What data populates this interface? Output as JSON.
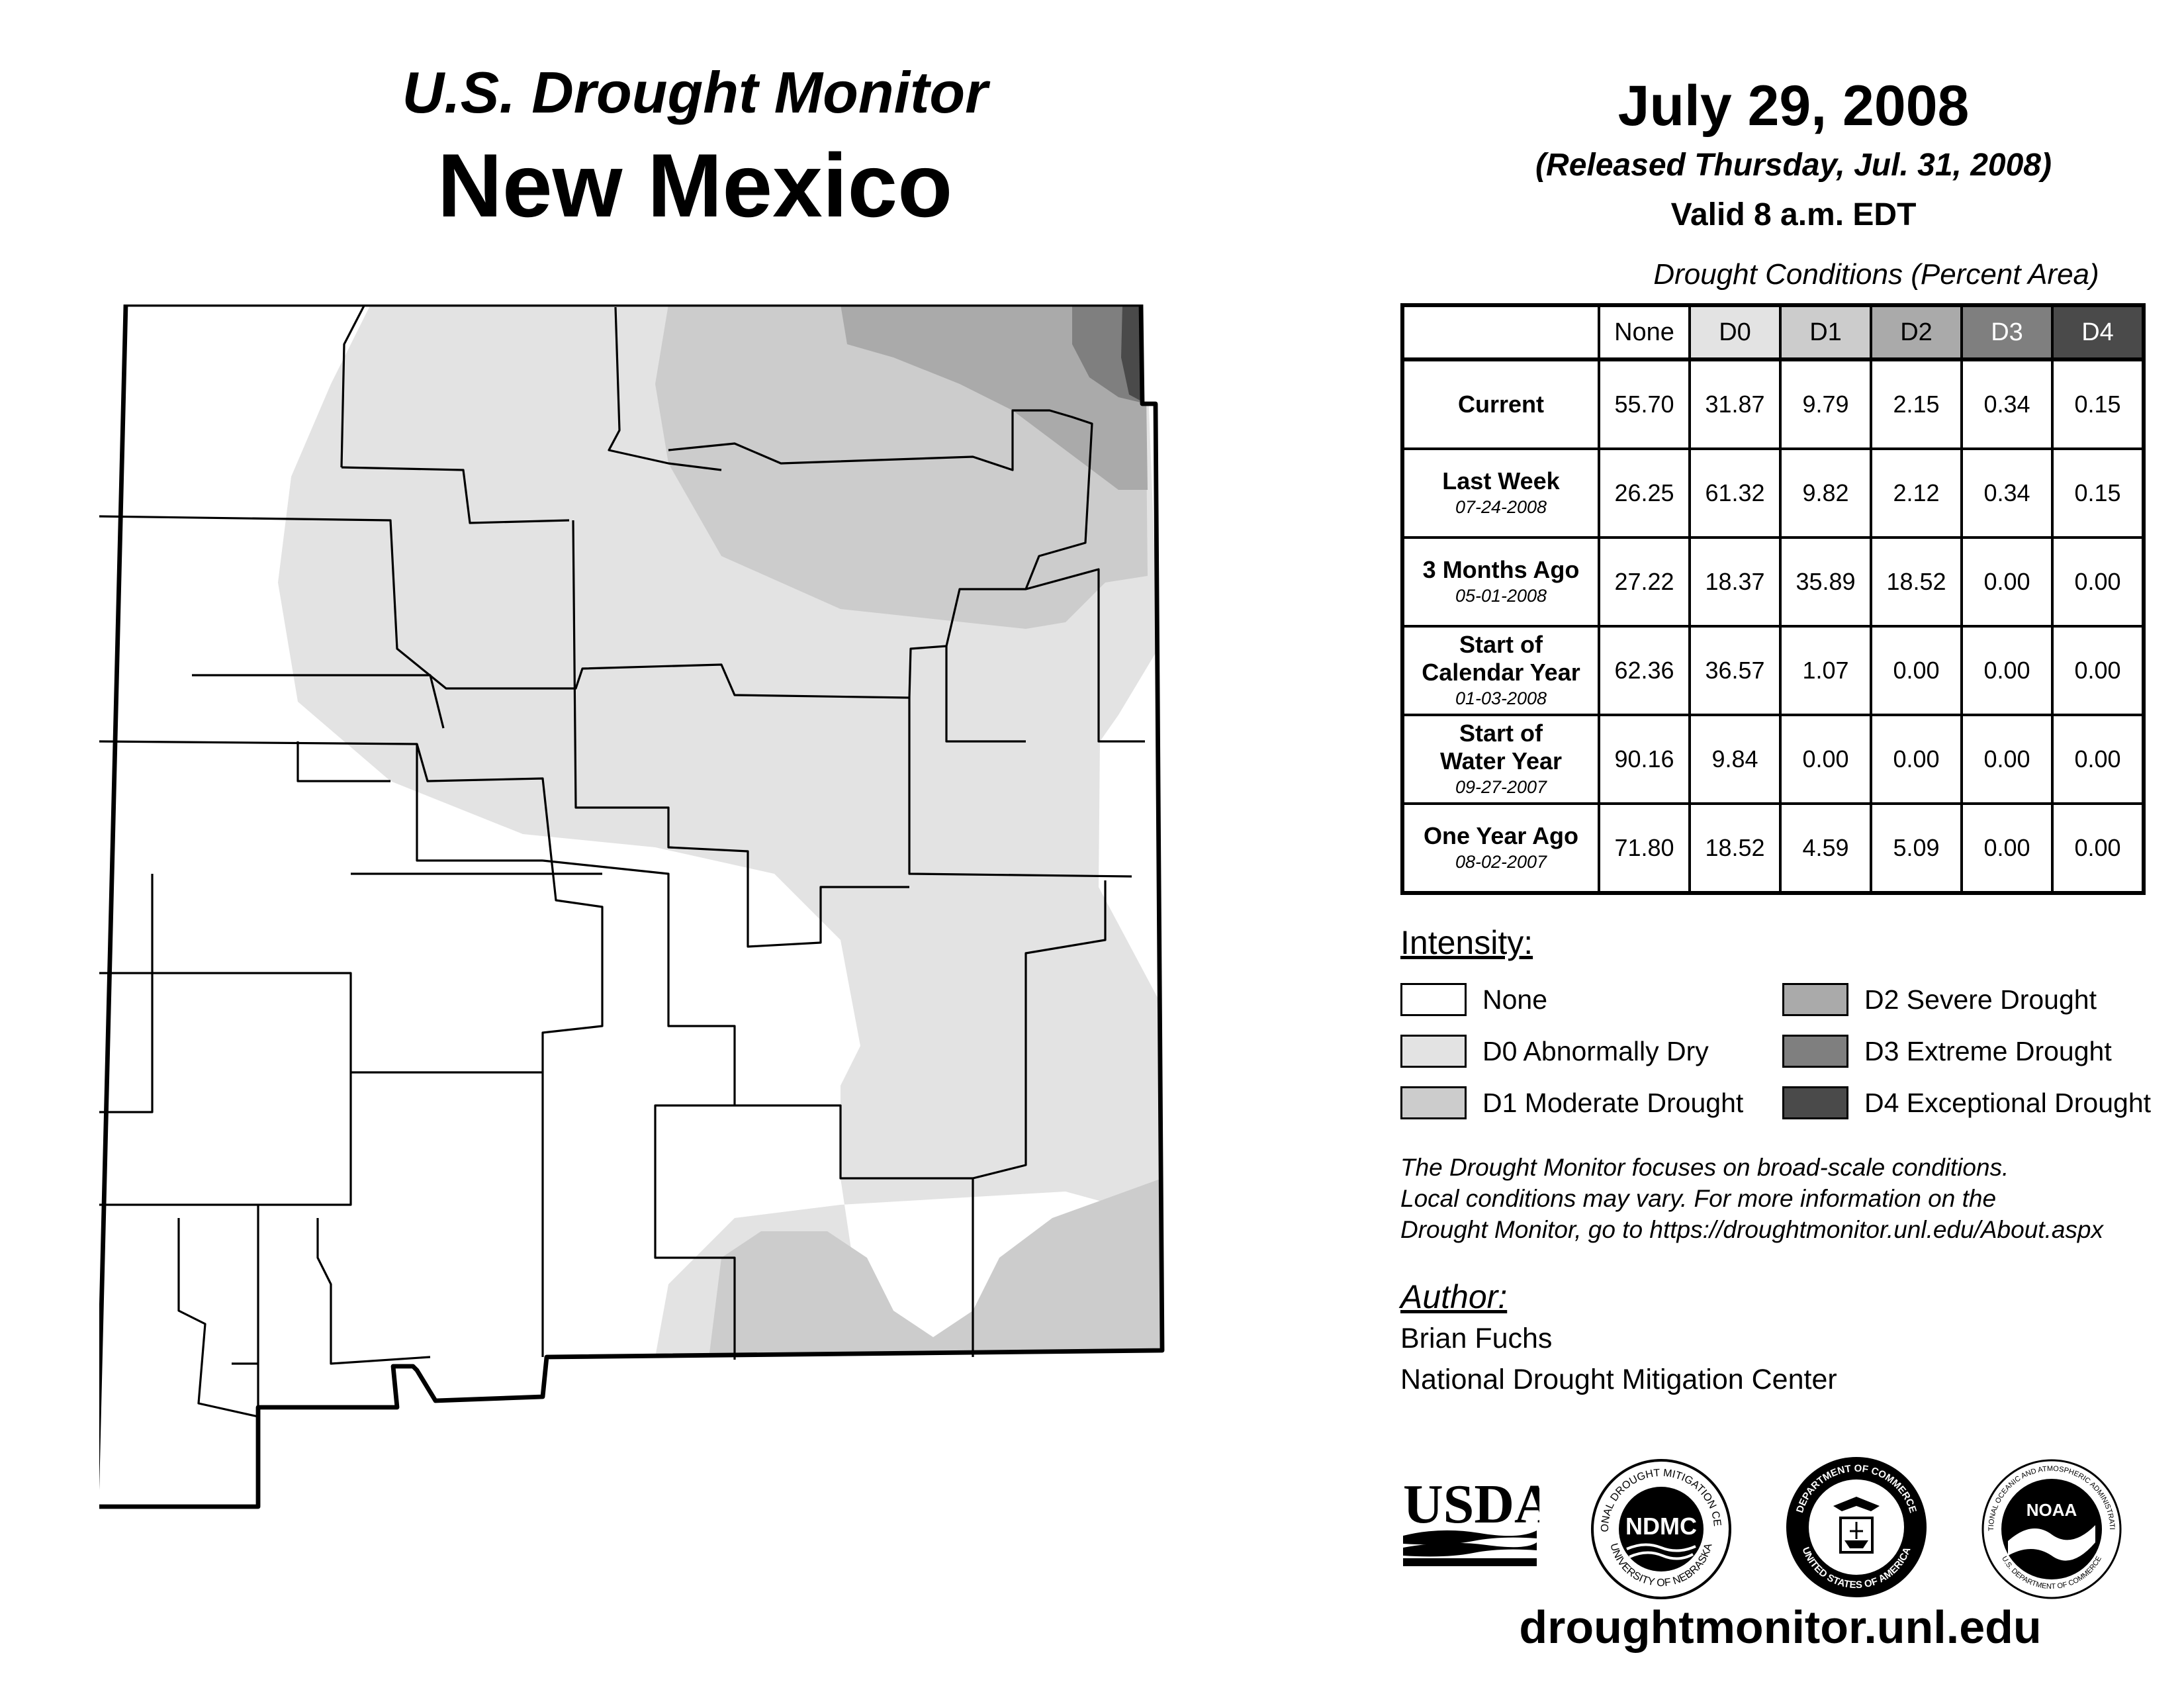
{
  "header": {
    "subtitle": "U.S. Drought Monitor",
    "state": "New Mexico",
    "date": "July 29, 2008",
    "released": "(Released Thursday, Jul. 31, 2008)",
    "valid": "Valid 8 a.m. EDT"
  },
  "table": {
    "title": "Drought Conditions (Percent Area)",
    "columns": [
      {
        "label": "None",
        "color": "#ffffff",
        "text_color": "#000000"
      },
      {
        "label": "D0",
        "color": "#e3e3e3",
        "text_color": "#000000"
      },
      {
        "label": "D1",
        "color": "#cccccc",
        "text_color": "#000000"
      },
      {
        "label": "D2",
        "color": "#aaaaaa",
        "text_color": "#000000"
      },
      {
        "label": "D3",
        "color": "#7f7f7f",
        "text_color": "#ffffff"
      },
      {
        "label": "D4",
        "color": "#4a4a4a",
        "text_color": "#ffffff"
      }
    ],
    "rows": [
      {
        "label": [
          "Current"
        ],
        "date": "",
        "values": [
          "55.70",
          "31.87",
          "9.79",
          "2.15",
          "0.34",
          "0.15"
        ]
      },
      {
        "label": [
          "Last Week"
        ],
        "date": "07-24-2008",
        "values": [
          "26.25",
          "61.32",
          "9.82",
          "2.12",
          "0.34",
          "0.15"
        ]
      },
      {
        "label": [
          "3 Months Ago"
        ],
        "date": "05-01-2008",
        "values": [
          "27.22",
          "18.37",
          "35.89",
          "18.52",
          "0.00",
          "0.00"
        ]
      },
      {
        "label": [
          "Start of",
          "Calendar Year"
        ],
        "date": "01-03-2008",
        "values": [
          "62.36",
          "36.57",
          "1.07",
          "0.00",
          "0.00",
          "0.00"
        ]
      },
      {
        "label": [
          "Start of",
          "Water Year"
        ],
        "date": "09-27-2007",
        "values": [
          "90.16",
          "9.84",
          "0.00",
          "0.00",
          "0.00",
          "0.00"
        ]
      },
      {
        "label": [
          "One Year Ago"
        ],
        "date": "08-02-2007",
        "values": [
          "71.80",
          "18.52",
          "4.59",
          "5.09",
          "0.00",
          "0.00"
        ]
      }
    ]
  },
  "legend": {
    "title": "Intensity:",
    "items": [
      {
        "label": "None",
        "color": "#ffffff"
      },
      {
        "label": "D0 Abnormally Dry",
        "color": "#e3e3e3"
      },
      {
        "label": "D1 Moderate Drought",
        "color": "#cccccc"
      },
      {
        "label": "D2 Severe Drought",
        "color": "#aaaaaa"
      },
      {
        "label": "D3 Extreme Drought",
        "color": "#7f7f7f"
      },
      {
        "label": "D4 Exceptional Drought",
        "color": "#4a4a4a"
      }
    ]
  },
  "disclaimer": {
    "line1": "The Drought Monitor focuses on broad-scale conditions.",
    "line2": "Local conditions may vary. For more information on the",
    "line3": "Drought Monitor, go to https://droughtmonitor.unl.edu/About.aspx"
  },
  "author": {
    "title": "Author:",
    "name": "Brian Fuchs",
    "org": "National Drought Mitigation Center"
  },
  "logos": {
    "usda": "USDA",
    "ndmc": "NDMC",
    "ndmc_ring_top": "NATIONAL DROUGHT MITIGATION CENTER",
    "ndmc_ring_bottom": "UNIVERSITY OF NEBRASKA",
    "doc_ring_top": "DEPARTMENT OF COMMERCE",
    "doc_ring_bottom": "UNITED STATES OF AMERICA",
    "noaa": "NOAA",
    "noaa_ring_top": "NATIONAL OCEANIC AND ATMOSPHERIC ADMINISTRATION",
    "noaa_ring_bottom": "U.S. DEPARTMENT OF COMMERCE"
  },
  "site_url": "droughtmonitor.unl.edu"
}
